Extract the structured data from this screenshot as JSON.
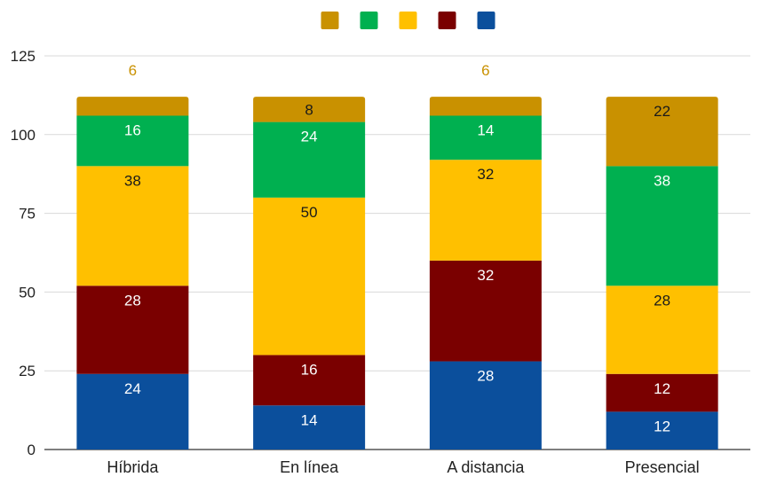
{
  "chart_data": {
    "type": "bar",
    "stacked": true,
    "categories": [
      "Híbrida",
      "En línea",
      "A distancia",
      "Presencial"
    ],
    "series": [
      {
        "color": "#0b4f9c",
        "label_color": "#ffffff",
        "values": [
          24,
          14,
          28,
          12
        ]
      },
      {
        "color": "#7a0000",
        "label_color": "#ffffff",
        "values": [
          28,
          16,
          32,
          12
        ]
      },
      {
        "color": "#ffc000",
        "label_color": "#1a1a1a",
        "values": [
          38,
          50,
          32,
          28
        ]
      },
      {
        "color": "#00b050",
        "label_color": "#ffffff",
        "values": [
          16,
          24,
          14,
          38
        ]
      },
      {
        "color": "#c99100",
        "label_color": "#1a1a1a",
        "outside_label_color": "#c99100",
        "values": [
          6,
          8,
          6,
          22
        ]
      }
    ],
    "legend_order": [
      4,
      3,
      2,
      1,
      0
    ],
    "legend_position": "top-center",
    "y_ticks": [
      0,
      25,
      50,
      75,
      100,
      125
    ],
    "ylim": [
      0,
      125
    ],
    "grid": true
  }
}
